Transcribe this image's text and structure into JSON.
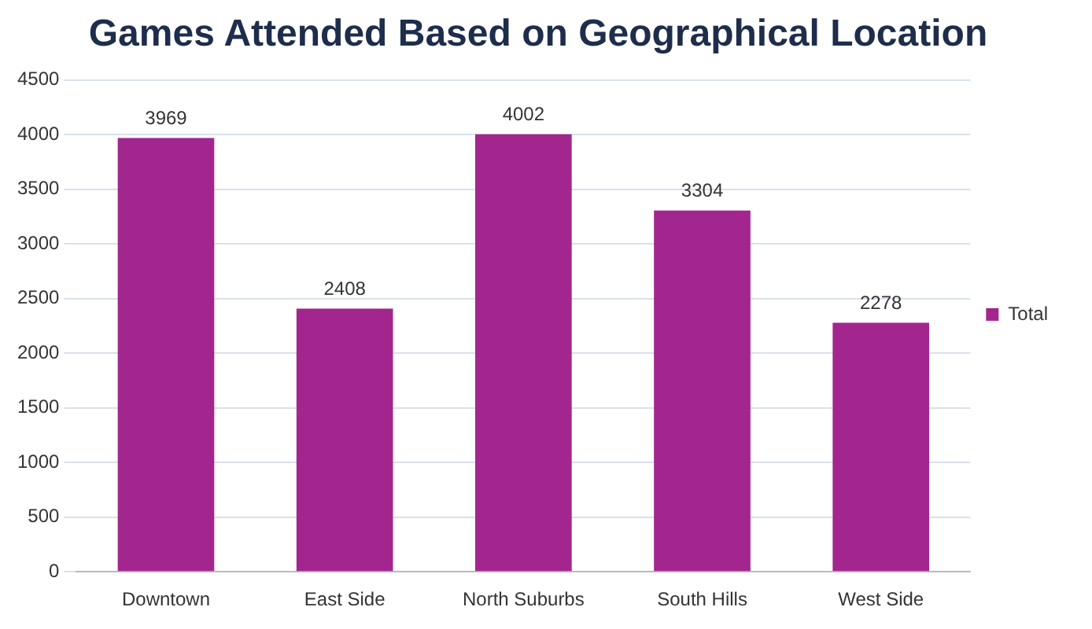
{
  "chart_data": {
    "type": "bar",
    "title": "Games Attended Based on Geographical Location",
    "categories": [
      "Downtown",
      "East Side",
      "North Suburbs",
      "South Hills",
      "West Side"
    ],
    "series": [
      {
        "name": "Total",
        "color": "#a3268f",
        "values": [
          3969,
          2408,
          4002,
          3304,
          2278
        ]
      }
    ],
    "ylim": [
      0,
      4500
    ],
    "yticks": [
      0,
      500,
      1000,
      1500,
      2000,
      2500,
      3000,
      3500,
      4000,
      4500
    ],
    "grid": "y",
    "legend": "right",
    "data_labels": true
  }
}
